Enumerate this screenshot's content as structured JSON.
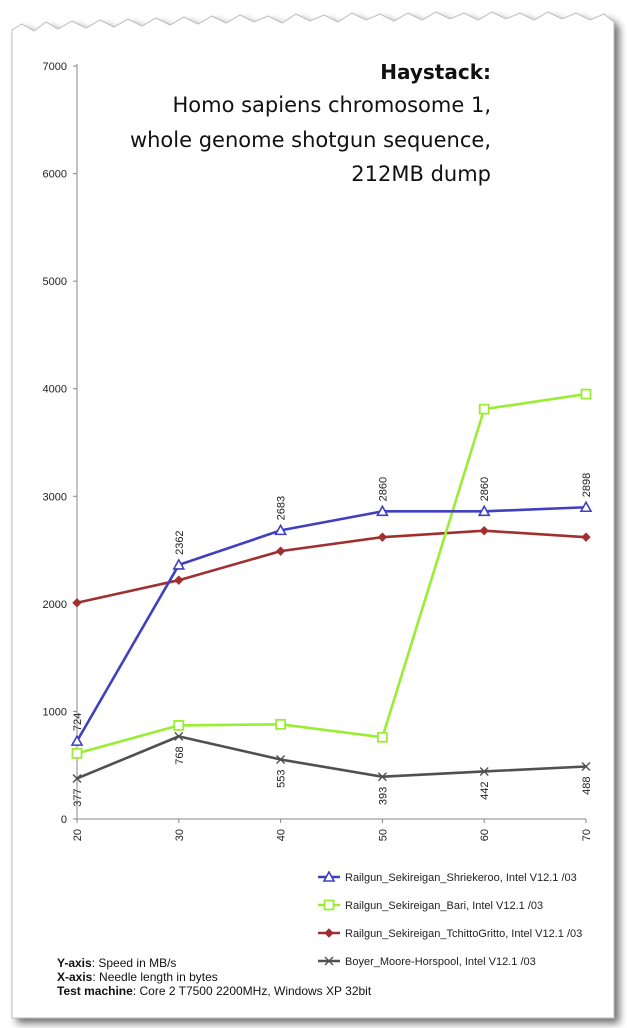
{
  "chart_data": {
    "type": "line",
    "title": "Haystack:",
    "subtitle_lines": [
      "Homo sapiens chromosome 1,",
      "whole genome shotgun sequence,",
      "212MB dump"
    ],
    "x": [
      20,
      30,
      40,
      50,
      60,
      70
    ],
    "ylim": [
      0,
      7000
    ],
    "yticks": [
      0,
      1000,
      2000,
      3000,
      4000,
      5000,
      6000,
      7000
    ],
    "grid": false,
    "legend_position": "bottom-right",
    "series": [
      {
        "name": "Railgun_Sekireigan_Shriekeroo, Intel V12.1 /03",
        "color": "#4040c0",
        "marker": "triangle",
        "values": [
          724,
          2362,
          2683,
          2860,
          2860,
          2898
        ],
        "labels": [
          "724",
          "2362",
          "2683",
          "2860",
          "2860",
          "2898"
        ],
        "label_position": "above"
      },
      {
        "name": "Railgun_Sekireigan_Bari, Intel V12.1 /03",
        "color": "#99ee33",
        "marker": "square",
        "values": [
          610,
          870,
          880,
          760,
          3810,
          3950
        ]
      },
      {
        "name": "Railgun_Sekireigan_TchittoGritto, Intel V12.1 /03",
        "color": "#a03030",
        "marker": "diamond",
        "values": [
          2010,
          2220,
          2490,
          2620,
          2680,
          2620
        ]
      },
      {
        "name": "Boyer_Moore-Horspool, Intel V12.1 /03",
        "color": "#505050",
        "marker": "x",
        "values": [
          377,
          768,
          553,
          393,
          442,
          488
        ],
        "labels": [
          "377",
          "768",
          "553",
          "393",
          "442",
          "488"
        ],
        "label_position": "below"
      }
    ]
  },
  "footer": {
    "y_axis_key": "Y-axis",
    "y_axis_value": ": Speed in MB/s",
    "x_axis_key": "X-axis",
    "x_axis_value": ": Needle length in bytes",
    "machine_key": "Test machine",
    "machine_value": ": Core 2 T7500 2200MHz, Windows XP 32bit"
  }
}
